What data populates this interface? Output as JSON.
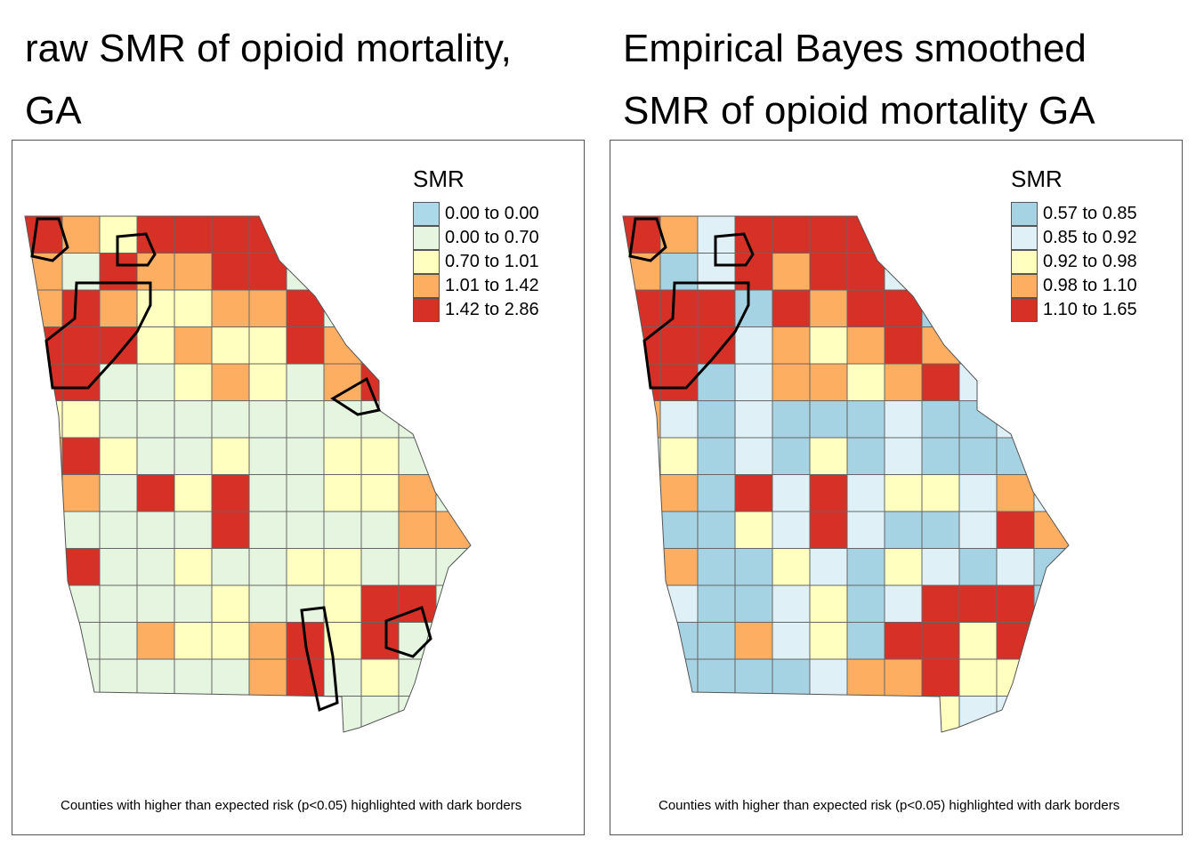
{
  "maps": [
    {
      "title_lines": [
        "raw SMR of opioid mortality,",
        "GA"
      ],
      "legend": {
        "title": "SMR",
        "classes": [
          {
            "label": "0.00 to 0.00",
            "color": "#abd9e9"
          },
          {
            "label": "0.00 to 0.70",
            "color": "#e5f5e0"
          },
          {
            "label": "0.70 to 1.01",
            "color": "#ffffbf"
          },
          {
            "label": "1.01 to 1.42",
            "color": "#fdae61"
          },
          {
            "label": "1.42 to 2.86",
            "color": "#d73027"
          }
        ]
      },
      "note": "Counties with higher than expected risk (p<0.05) highlighted with dark borders",
      "county_class_grid": [
        [
          4,
          3,
          2,
          4,
          4,
          4,
          4,
          1,
          1,
          1,
          1,
          1
        ],
        [
          3,
          1,
          4,
          3,
          3,
          4,
          4,
          1,
          1,
          1,
          1,
          1
        ],
        [
          3,
          4,
          3,
          2,
          2,
          3,
          3,
          4,
          1,
          1,
          1,
          1
        ],
        [
          4,
          4,
          4,
          2,
          3,
          2,
          2,
          4,
          3,
          1,
          1,
          1
        ],
        [
          4,
          4,
          1,
          1,
          2,
          3,
          2,
          1,
          3,
          4,
          1,
          1
        ],
        [
          2,
          2,
          1,
          1,
          1,
          1,
          1,
          1,
          1,
          1,
          1,
          1
        ],
        [
          3,
          4,
          2,
          1,
          1,
          2,
          1,
          1,
          2,
          2,
          1,
          1
        ],
        [
          4,
          3,
          1,
          4,
          2,
          4,
          1,
          1,
          2,
          2,
          3,
          1
        ],
        [
          1,
          1,
          1,
          1,
          1,
          4,
          1,
          1,
          1,
          1,
          3,
          3
        ],
        [
          3,
          4,
          1,
          1,
          2,
          1,
          1,
          2,
          2,
          1,
          1,
          1
        ],
        [
          1,
          1,
          1,
          1,
          1,
          2,
          1,
          1,
          2,
          4,
          4,
          1
        ],
        [
          3,
          1,
          1,
          3,
          2,
          2,
          3,
          4,
          2,
          4,
          1,
          1
        ],
        [
          1,
          1,
          1,
          1,
          1,
          1,
          3,
          4,
          1,
          2,
          1,
          1
        ],
        [
          1,
          1,
          1,
          1,
          1,
          1,
          1,
          4,
          1,
          1,
          1,
          1
        ]
      ]
    },
    {
      "title_lines": [
        "Empirical Bayes smoothed",
        "SMR of opioid mortality GA"
      ],
      "legend": {
        "title": "SMR",
        "classes": [
          {
            "label": "0.57 to 0.85",
            "color": "#a6d3e4"
          },
          {
            "label": "0.85 to 0.92",
            "color": "#dff1f7"
          },
          {
            "label": "0.92 to 0.98",
            "color": "#ffffbf"
          },
          {
            "label": "0.98 to 1.10",
            "color": "#fdae61"
          },
          {
            "label": "1.10 to 1.65",
            "color": "#d73027"
          }
        ]
      },
      "note": "Counties with higher than expected risk (p<0.05) highlighted with dark borders",
      "county_class_grid": [
        [
          4,
          3,
          1,
          4,
          4,
          4,
          4,
          1,
          1,
          1,
          1,
          1
        ],
        [
          3,
          0,
          1,
          4,
          3,
          4,
          4,
          1,
          1,
          1,
          1,
          1
        ],
        [
          4,
          4,
          4,
          0,
          4,
          3,
          4,
          4,
          0,
          1,
          1,
          1
        ],
        [
          4,
          4,
          4,
          1,
          3,
          2,
          3,
          4,
          3,
          1,
          1,
          1
        ],
        [
          4,
          4,
          0,
          1,
          3,
          3,
          2,
          3,
          4,
          1,
          1,
          1
        ],
        [
          3,
          1,
          0,
          1,
          0,
          0,
          0,
          1,
          0,
          0,
          1,
          1
        ],
        [
          1,
          2,
          0,
          1,
          0,
          2,
          0,
          1,
          0,
          0,
          0,
          1
        ],
        [
          3,
          3,
          0,
          4,
          1,
          4,
          1,
          2,
          2,
          1,
          3,
          1
        ],
        [
          1,
          0,
          0,
          2,
          1,
          4,
          1,
          0,
          0,
          1,
          4,
          3
        ],
        [
          3,
          3,
          0,
          0,
          2,
          1,
          0,
          2,
          1,
          0,
          1,
          0
        ],
        [
          1,
          1,
          0,
          0,
          1,
          2,
          0,
          1,
          4,
          4,
          4,
          0
        ],
        [
          3,
          0,
          0,
          3,
          1,
          2,
          0,
          4,
          4,
          2,
          4,
          1
        ],
        [
          2,
          0,
          0,
          0,
          0,
          1,
          3,
          3,
          4,
          2,
          2,
          1
        ],
        [
          1,
          1,
          0,
          1,
          1,
          1,
          2,
          4,
          2,
          1,
          1,
          1
        ]
      ]
    }
  ]
}
